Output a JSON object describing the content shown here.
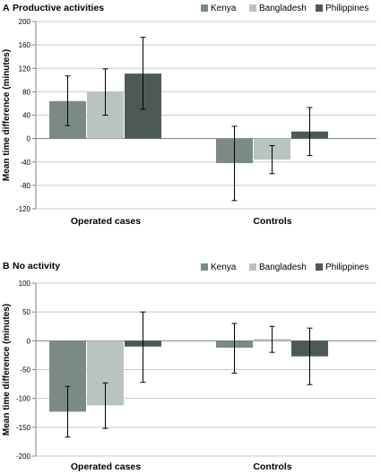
{
  "colors": {
    "Kenya": "#7b8a86",
    "Bangladesh": "#b9c4c0",
    "Philippines": "#4d5957",
    "grid": "#c8c8c8",
    "axis": "#808080"
  },
  "chart_data": [
    {
      "type": "bar",
      "panel_label": "A",
      "title": "Productive activities",
      "ylabel": "Mean time difference (minutes)",
      "xlabel": "",
      "categories": [
        "Operated cases",
        "Controls"
      ],
      "ylim": [
        -120,
        200
      ],
      "yticks": [
        "200",
        "160",
        "120",
        "80",
        "40",
        "0",
        "-40",
        "-80",
        "-120"
      ],
      "grid": true,
      "legend": "top-right",
      "series": [
        {
          "name": "Kenya",
          "values": [
            64,
            -42
          ],
          "err_low": [
            22,
            -106
          ],
          "err_high": [
            107,
            21
          ]
        },
        {
          "name": "Bangladesh",
          "values": [
            80,
            -36
          ],
          "err_low": [
            40,
            -60
          ],
          "err_high": [
            119,
            -12
          ]
        },
        {
          "name": "Philippines",
          "values": [
            111,
            12
          ],
          "err_low": [
            50,
            -29
          ],
          "err_high": [
            173,
            53
          ]
        }
      ]
    },
    {
      "type": "bar",
      "panel_label": "B",
      "title": "No activity",
      "ylabel": "Mean time difference (minutes)",
      "xlabel": "",
      "categories": [
        "Operated cases",
        "Controls"
      ],
      "ylim": [
        -200,
        100
      ],
      "yticks": [
        "100",
        "50",
        "0",
        "-50",
        "-100",
        "-150",
        "-200"
      ],
      "grid": true,
      "legend": "top-right",
      "series": [
        {
          "name": "Kenya",
          "values": [
            -123,
            -12
          ],
          "err_low": [
            -167,
            -56
          ],
          "err_high": [
            -79,
            30
          ]
        },
        {
          "name": "Bangladesh",
          "values": [
            -112,
            3
          ],
          "err_low": [
            -152,
            -20
          ],
          "err_high": [
            -73,
            25
          ]
        },
        {
          "name": "Philippines",
          "values": [
            -10,
            -27
          ],
          "err_low": [
            -72,
            -76
          ],
          "err_high": [
            50,
            22
          ]
        }
      ]
    }
  ]
}
